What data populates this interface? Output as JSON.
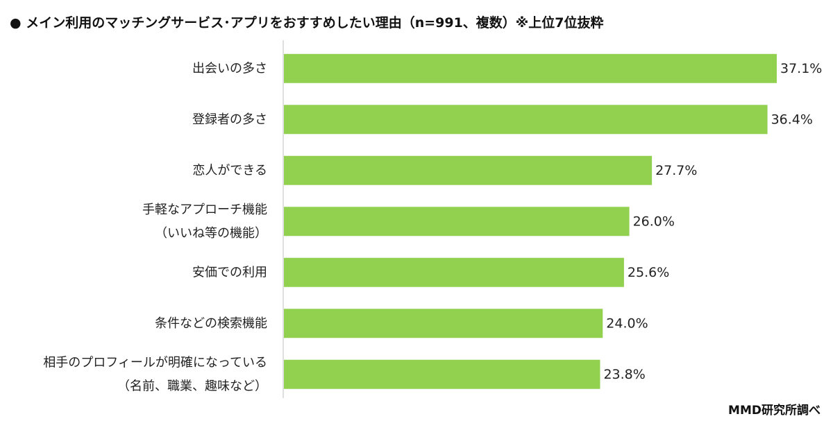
{
  "header": {
    "title": "●  メイン利用のマッチングサービス･アプリをおすすめしたい理由（n=991、複数）※上位7位抜粋"
  },
  "footer": {
    "source": "MMD研究所調べ"
  },
  "colors": {
    "bar": "#92d050",
    "axis": "#bfbfbf"
  },
  "chart_data": {
    "type": "bar",
    "orientation": "horizontal",
    "title": "",
    "xlabel": "",
    "ylabel": "",
    "grid": false,
    "legend": "none",
    "xlim": [
      0,
      37.1
    ],
    "unit": "%",
    "categories": [
      [
        "出会いの多さ"
      ],
      [
        "登録者の多さ"
      ],
      [
        "恋人ができる"
      ],
      [
        "手軽なアプローチ機能",
        "（いいね等の機能）"
      ],
      [
        "安価での利用"
      ],
      [
        "条件などの検索機能"
      ],
      [
        "相手のプロフィールが明確になっている",
        "（名前、職業、趣味など）"
      ]
    ],
    "values": [
      37.1,
      36.4,
      27.7,
      26.0,
      25.6,
      24.0,
      23.8
    ],
    "value_labels": [
      "37.1%",
      "36.4%",
      "27.7%",
      "26.0%",
      "25.6%",
      "24.0%",
      "23.8%"
    ]
  }
}
